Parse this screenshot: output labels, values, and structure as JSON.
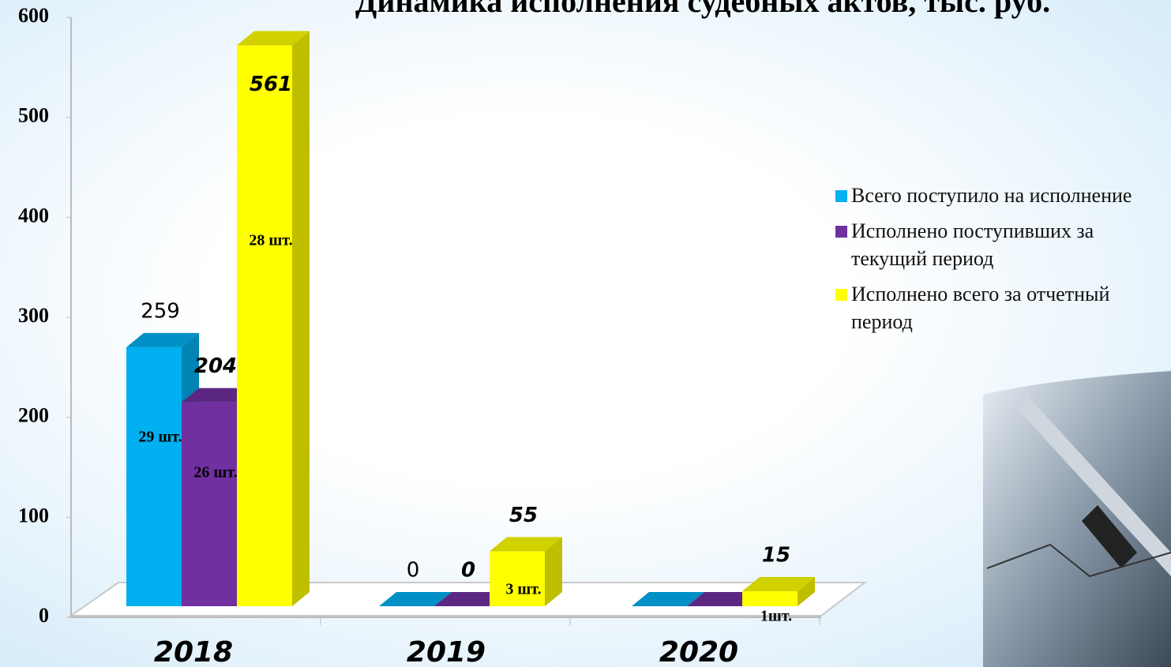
{
  "chart_data": {
    "type": "bar3d",
    "title": "Динамика исполнения судебных актов, тыс. руб.",
    "categories": [
      "2018",
      "2019",
      "2020"
    ],
    "ylim": [
      0,
      600
    ],
    "yticks": [
      0,
      100,
      200,
      300,
      400,
      500,
      600
    ],
    "series": [
      {
        "name": "Всего поступило на исполнение",
        "color": "#00b0f0",
        "values": [
          259,
          0,
          0
        ],
        "value_labels": [
          "259",
          "0",
          null
        ],
        "counts": [
          "29 шт.",
          null,
          null
        ]
      },
      {
        "name": "Исполнено поступивших за текущий период",
        "color": "#7030a0",
        "values": [
          204,
          0,
          0
        ],
        "value_labels": [
          "204",
          "0",
          null
        ],
        "counts": [
          "26 шт.",
          null,
          null
        ]
      },
      {
        "name": "Исполнено всего за отчетный период",
        "color": "#ffff00",
        "values": [
          561,
          55,
          15
        ],
        "value_labels": [
          "561",
          "55",
          "15"
        ],
        "counts": [
          "28 шт.",
          "3 шт.",
          "1шт."
        ]
      }
    ],
    "legend": "right"
  }
}
